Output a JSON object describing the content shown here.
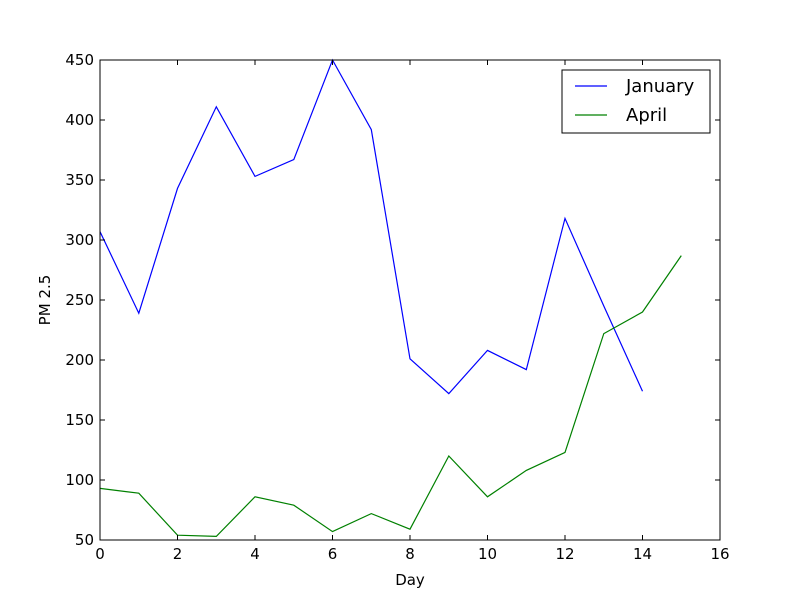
{
  "chart_data": {
    "type": "line",
    "xlabel": "Day",
    "ylabel": "PM 2.5",
    "xlim": [
      0,
      16
    ],
    "ylim": [
      50,
      450
    ],
    "xticks": [
      "0",
      "2",
      "4",
      "6",
      "8",
      "10",
      "12",
      "14",
      "16"
    ],
    "yticks": [
      "50",
      "100",
      "150",
      "200",
      "250",
      "300",
      "350",
      "400",
      "450"
    ],
    "grid": false,
    "legend_position": "top-right",
    "series": [
      {
        "name": "January",
        "color": "#0000ff",
        "x": [
          0,
          1,
          2,
          3,
          4,
          5,
          6,
          7,
          8,
          9,
          10,
          11,
          12,
          13,
          14
        ],
        "values": [
          307,
          239,
          343,
          411,
          353,
          367,
          450,
          392,
          201,
          172,
          208,
          192,
          318,
          245,
          174
        ]
      },
      {
        "name": "April",
        "color": "#008000",
        "x": [
          0,
          1,
          2,
          3,
          4,
          5,
          6,
          7,
          8,
          9,
          10,
          11,
          12,
          13,
          14,
          15
        ],
        "values": [
          93,
          89,
          54,
          53,
          86,
          79,
          57,
          72,
          59,
          120,
          86,
          108,
          123,
          222,
          240,
          287
        ]
      }
    ]
  }
}
